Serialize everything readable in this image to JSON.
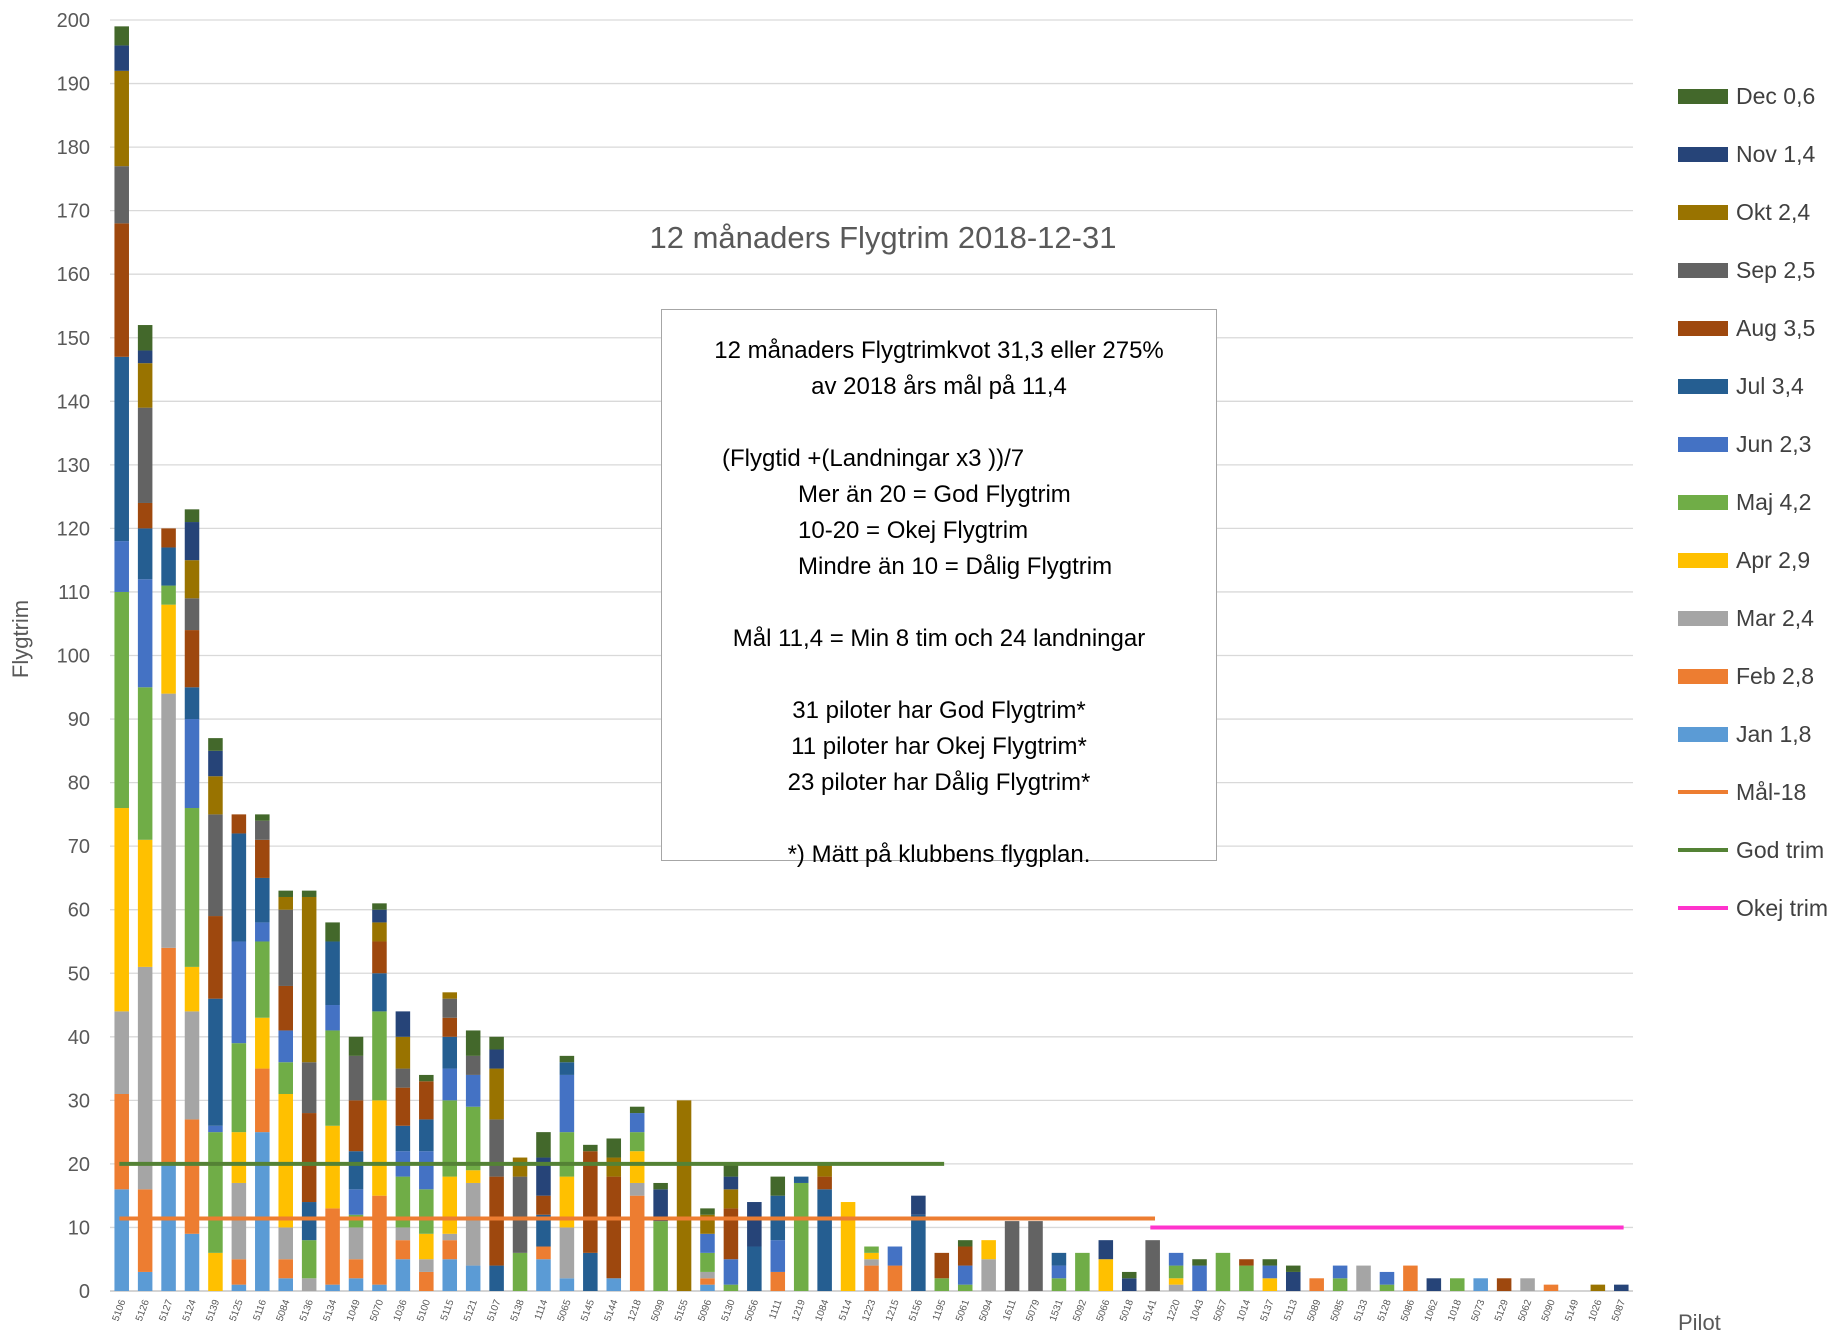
{
  "chart_data": {
    "type": "bar",
    "stacked": true,
    "title": "12 månaders Flygtrim 2018-12-31",
    "xlabel": "Pilot",
    "ylabel": "Flygtrim",
    "ylim": [
      0,
      200
    ],
    "yticks": [
      0,
      10,
      20,
      30,
      40,
      50,
      60,
      70,
      80,
      90,
      100,
      110,
      120,
      130,
      140,
      150,
      160,
      170,
      180,
      190,
      200
    ],
    "grid": true,
    "legend_position": "right",
    "categories": [
      "5106",
      "5126",
      "5127",
      "5124",
      "5139",
      "5125",
      "5116",
      "5084",
      "5136",
      "5134",
      "1049",
      "5070",
      "1036",
      "5100",
      "5115",
      "5121",
      "5107",
      "5138",
      "1114",
      "5065",
      "5145",
      "5144",
      "1218",
      "5099",
      "5155",
      "5096",
      "5130",
      "5056",
      "1111",
      "1219",
      "1084",
      "5114",
      "1223",
      "1215",
      "5156",
      "1195",
      "5061",
      "5094",
      "1611",
      "5079",
      "1531",
      "5092",
      "5066",
      "5018",
      "5141",
      "1220",
      "1043",
      "5057",
      "1014",
      "5137",
      "5113",
      "5089",
      "5085",
      "5133",
      "5128",
      "5086",
      "1062",
      "1018",
      "5073",
      "5129",
      "5062",
      "5090",
      "5149",
      "1026",
      "5087"
    ],
    "series": [
      {
        "name": "Jan 1,8",
        "color": "#5b9bd5",
        "values": [
          16,
          3,
          20,
          9,
          0,
          1,
          25,
          2,
          0,
          1,
          2,
          1,
          5,
          0,
          5,
          4,
          0,
          0,
          5,
          2,
          0,
          2,
          0,
          0,
          0,
          1,
          0,
          0,
          0,
          0,
          0,
          0,
          0,
          0,
          0,
          0,
          0,
          0,
          0,
          0,
          0,
          0,
          0,
          0,
          0,
          0,
          0,
          0,
          0,
          0,
          0,
          0,
          0,
          0,
          0,
          0,
          0,
          0,
          2,
          0,
          0,
          0,
          0,
          0,
          0
        ]
      },
      {
        "name": "Feb 2,8",
        "color": "#ed7d31",
        "values": [
          15,
          13,
          34,
          18,
          0,
          4,
          10,
          3,
          0,
          12,
          3,
          14,
          3,
          3,
          3,
          0,
          0,
          0,
          2,
          0,
          0,
          0,
          15,
          0,
          0,
          1,
          0,
          0,
          3,
          0,
          0,
          0,
          4,
          4,
          0,
          0,
          0,
          0,
          0,
          0,
          0,
          0,
          0,
          0,
          0,
          0,
          0,
          0,
          0,
          0,
          0,
          2,
          0,
          0,
          0,
          4,
          0,
          0,
          0,
          0,
          0,
          1,
          0,
          0,
          0
        ]
      },
      {
        "name": "Mar 2,4",
        "color": "#a5a5a5",
        "values": [
          13,
          35,
          40,
          17,
          0,
          12,
          0,
          5,
          2,
          0,
          5,
          0,
          2,
          2,
          1,
          13,
          0,
          0,
          0,
          8,
          0,
          0,
          2,
          0,
          0,
          1,
          0,
          0,
          0,
          0,
          0,
          0,
          1,
          0,
          0,
          0,
          0,
          5,
          0,
          0,
          0,
          0,
          0,
          0,
          0,
          1,
          0,
          0,
          0,
          0,
          0,
          0,
          0,
          4,
          0,
          0,
          0,
          0,
          0,
          0,
          2,
          0,
          0,
          0,
          0
        ]
      },
      {
        "name": "Apr 2,9",
        "color": "#ffc000",
        "values": [
          32,
          20,
          14,
          7,
          6,
          8,
          8,
          21,
          0,
          13,
          0,
          15,
          0,
          4,
          9,
          2,
          0,
          0,
          0,
          8,
          0,
          0,
          5,
          0,
          0,
          0,
          0,
          0,
          0,
          0,
          0,
          14,
          1,
          0,
          0,
          0,
          0,
          3,
          0,
          0,
          0,
          0,
          5,
          0,
          0,
          1,
          0,
          0,
          0,
          2,
          0,
          0,
          0,
          0,
          0,
          0,
          0,
          0,
          0,
          0,
          0,
          0,
          0,
          0,
          0
        ]
      },
      {
        "name": "Maj 4,2",
        "color": "#70ad47",
        "values": [
          34,
          24,
          3,
          25,
          19,
          14,
          12,
          5,
          6,
          15,
          2,
          14,
          8,
          7,
          12,
          10,
          0,
          6,
          0,
          7,
          0,
          0,
          3,
          11,
          0,
          3,
          1,
          0,
          0,
          17,
          0,
          0,
          1,
          0,
          0,
          2,
          1,
          0,
          0,
          0,
          2,
          6,
          0,
          0,
          0,
          2,
          0,
          6,
          4,
          0,
          0,
          0,
          2,
          0,
          1,
          0,
          0,
          2,
          0,
          0,
          0,
          0,
          0,
          0,
          0
        ]
      },
      {
        "name": "Jun 2,3",
        "color": "#4472c4",
        "values": [
          8,
          17,
          0,
          14,
          1,
          16,
          3,
          5,
          0,
          4,
          4,
          0,
          4,
          6,
          5,
          5,
          0,
          0,
          0,
          9,
          0,
          0,
          3,
          0,
          0,
          3,
          4,
          0,
          5,
          0,
          0,
          0,
          0,
          3,
          0,
          0,
          3,
          0,
          0,
          0,
          2,
          0,
          0,
          0,
          0,
          2,
          4,
          0,
          0,
          2,
          0,
          0,
          2,
          0,
          2,
          0,
          0,
          0,
          0,
          0,
          0,
          0,
          0,
          0,
          0
        ]
      },
      {
        "name": "Jul 3,4",
        "color": "#255e91",
        "values": [
          29,
          8,
          6,
          5,
          20,
          17,
          7,
          0,
          6,
          10,
          6,
          6,
          4,
          5,
          5,
          0,
          4,
          0,
          5,
          2,
          6,
          0,
          0,
          0,
          0,
          0,
          0,
          7,
          7,
          1,
          16,
          0,
          0,
          0,
          12,
          0,
          0,
          0,
          0,
          0,
          2,
          0,
          0,
          0,
          0,
          0,
          0,
          0,
          0,
          0,
          0,
          0,
          0,
          0,
          0,
          0,
          0,
          0,
          0,
          0,
          0,
          0,
          0,
          0,
          0
        ]
      },
      {
        "name": "Aug 3,5",
        "color": "#9e480e",
        "values": [
          21,
          4,
          3,
          9,
          13,
          3,
          6,
          7,
          14,
          0,
          8,
          5,
          6,
          6,
          3,
          0,
          14,
          0,
          3,
          0,
          16,
          16,
          0,
          0,
          0,
          0,
          8,
          0,
          0,
          0,
          2,
          0,
          0,
          0,
          0,
          4,
          3,
          0,
          0,
          0,
          0,
          0,
          0,
          0,
          0,
          0,
          0,
          0,
          1,
          0,
          0,
          0,
          0,
          0,
          0,
          0,
          0,
          0,
          0,
          2,
          0,
          0,
          0,
          0,
          0
        ]
      },
      {
        "name": "Sep 2,5",
        "color": "#636363",
        "values": [
          9,
          15,
          0,
          5,
          16,
          0,
          3,
          12,
          8,
          0,
          7,
          0,
          3,
          0,
          3,
          3,
          9,
          12,
          0,
          0,
          0,
          0,
          0,
          0,
          0,
          0,
          0,
          0,
          0,
          0,
          0,
          0,
          0,
          0,
          0,
          0,
          0,
          0,
          11,
          11,
          0,
          0,
          0,
          0,
          8,
          0,
          0,
          0,
          0,
          0,
          0,
          0,
          0,
          0,
          0,
          0,
          0,
          0,
          0,
          0,
          0,
          0,
          0,
          0,
          0
        ]
      },
      {
        "name": "Okt 2,4",
        "color": "#997300",
        "values": [
          15,
          7,
          0,
          6,
          6,
          0,
          0,
          2,
          26,
          0,
          0,
          3,
          5,
          0,
          1,
          0,
          8,
          3,
          0,
          0,
          0,
          3,
          0,
          0,
          30,
          3,
          3,
          0,
          0,
          0,
          2,
          0,
          0,
          0,
          0,
          0,
          0,
          0,
          0,
          0,
          0,
          0,
          0,
          0,
          0,
          0,
          0,
          0,
          0,
          0,
          0,
          0,
          0,
          0,
          0,
          0,
          0,
          0,
          0,
          0,
          0,
          0,
          0,
          1,
          0
        ]
      },
      {
        "name": "Nov 1,4",
        "color": "#264478",
        "values": [
          4,
          2,
          0,
          6,
          4,
          0,
          0,
          0,
          0,
          0,
          0,
          2,
          4,
          0,
          0,
          0,
          3,
          0,
          6,
          0,
          0,
          0,
          0,
          5,
          0,
          0,
          2,
          7,
          0,
          0,
          0,
          0,
          0,
          0,
          3,
          0,
          0,
          0,
          0,
          0,
          0,
          0,
          3,
          2,
          0,
          0,
          0,
          0,
          0,
          0,
          3,
          0,
          0,
          0,
          0,
          0,
          2,
          0,
          0,
          0,
          0,
          0,
          0,
          0,
          1
        ]
      },
      {
        "name": "Dec 0,6",
        "color": "#43682b",
        "values": [
          3,
          4,
          0,
          2,
          2,
          0,
          1,
          1,
          1,
          3,
          3,
          1,
          0,
          1,
          0,
          4,
          2,
          0,
          4,
          1,
          1,
          3,
          1,
          1,
          0,
          1,
          2,
          0,
          3,
          0,
          0,
          0,
          0,
          0,
          0,
          0,
          1,
          0,
          0,
          0,
          0,
          0,
          0,
          1,
          0,
          0,
          1,
          0,
          0,
          1,
          1,
          0,
          0,
          0,
          0,
          0,
          0,
          0,
          0,
          0,
          0,
          0,
          0,
          0,
          0
        ]
      }
    ],
    "lines": [
      {
        "name": "Mål-18",
        "color": "#ed7d31",
        "value": 11.4,
        "from_category": "5106",
        "to_category": "5141"
      },
      {
        "name": "God trim",
        "color": "#548235",
        "value": 20,
        "from_category": "5106",
        "to_category": "1195"
      },
      {
        "name": "Okej trim",
        "color": "#ff33cc",
        "value": 10,
        "from_category": "5141",
        "to_category": "5087"
      }
    ]
  },
  "note": {
    "line1": "12 månaders Flygtrimkvot 31,3 eller 275%",
    "line2": "av 2018 års mål på 11,4",
    "formula": "(Flygtid +(Landningar x3 ))/7",
    "good": "Mer än 20 = God Flygtrim",
    "okay": "10-20 = Okej Flygtrim",
    "bad": "Mindre än 10 = Dålig Flygtrim",
    "goal": "Mål 11,4 = Min 8 tim och 24  landningar",
    "count_good": "31 piloter har God Flygtrim*",
    "count_okay": "11 piloter har Okej Flygtrim*",
    "count_bad": "23 piloter har Dålig Flygtrim*",
    "footnote": "*) Mätt på klubbens flygplan."
  }
}
